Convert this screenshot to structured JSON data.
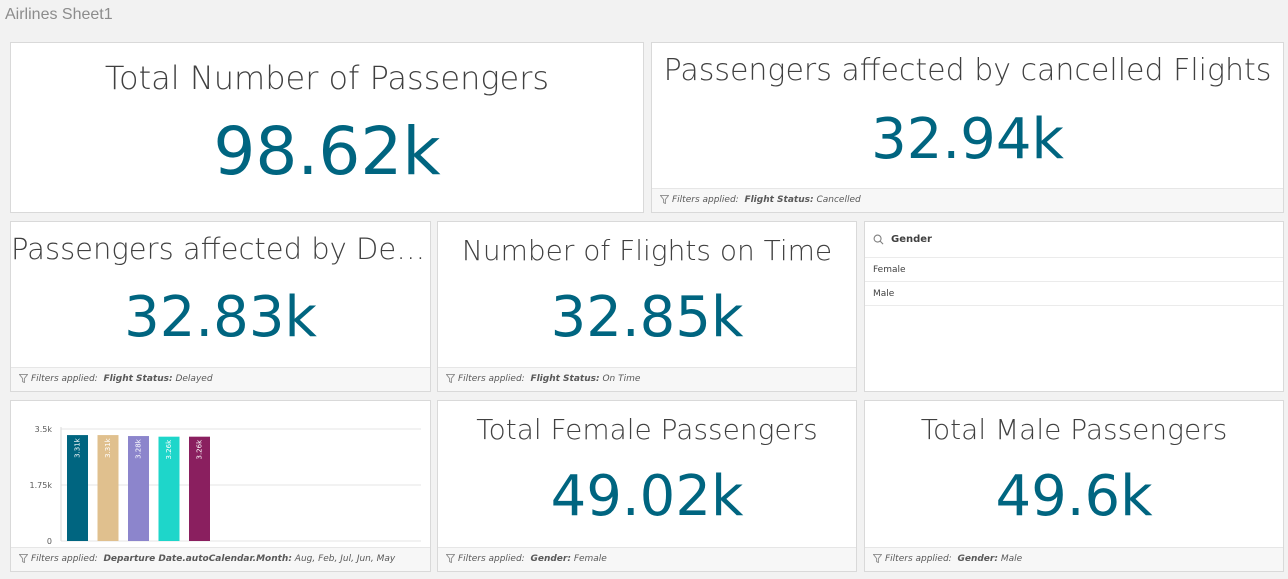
{
  "sheet": {
    "title": "Airlines Sheet1"
  },
  "footer_prefix": "Filters applied:",
  "kpis": {
    "total_passengers": {
      "title": "Total Number of Passengers",
      "value": "98.62k"
    },
    "cancelled": {
      "title": "Passengers affected by cancelled Flights",
      "value": "32.94k",
      "filter_field": "Flight Status:",
      "filter_value": "Cancelled"
    },
    "delayed": {
      "title": "Passengers affected by Del…",
      "value": "32.83k",
      "filter_field": "Flight Status:",
      "filter_value": "Delayed"
    },
    "on_time": {
      "title": "Number of Flights on Time",
      "value": "32.85k",
      "filter_field": "Flight Status:",
      "filter_value": "On Time"
    },
    "female": {
      "title": "Total Female Passengers",
      "value": "49.02k",
      "filter_field": "Gender:",
      "filter_value": "Female"
    },
    "male": {
      "title": "Total Male Passengers",
      "value": "49.6k",
      "filter_field": "Gender:",
      "filter_value": "Male"
    }
  },
  "gender_filter": {
    "title": "Gender",
    "items": [
      "Female",
      "Male"
    ]
  },
  "chart_footer": {
    "filter_field": "Departure Date.autoCalendar.Month:",
    "filter_value": "Aug, Feb, Jul, Jun, May"
  },
  "chart_data": {
    "type": "bar",
    "values": [
      3.31,
      3.31,
      3.28,
      3.26,
      3.26
    ],
    "value_labels": [
      "3.31k",
      "3.31k",
      "3.28k",
      "3.26k",
      "3.26k"
    ],
    "colors": [
      "#006580",
      "#e0c08e",
      "#8c85cc",
      "#1ed6ca",
      "#8a1f5f"
    ],
    "y_ticks": [
      0,
      1.75,
      3.5
    ],
    "y_tick_labels": [
      "0",
      "1.75k",
      "3.5k"
    ],
    "ylim": [
      0,
      3.5
    ],
    "grid": true
  },
  "colors": {
    "kpi_value": "#006580",
    "background": "#f2f2f2"
  }
}
